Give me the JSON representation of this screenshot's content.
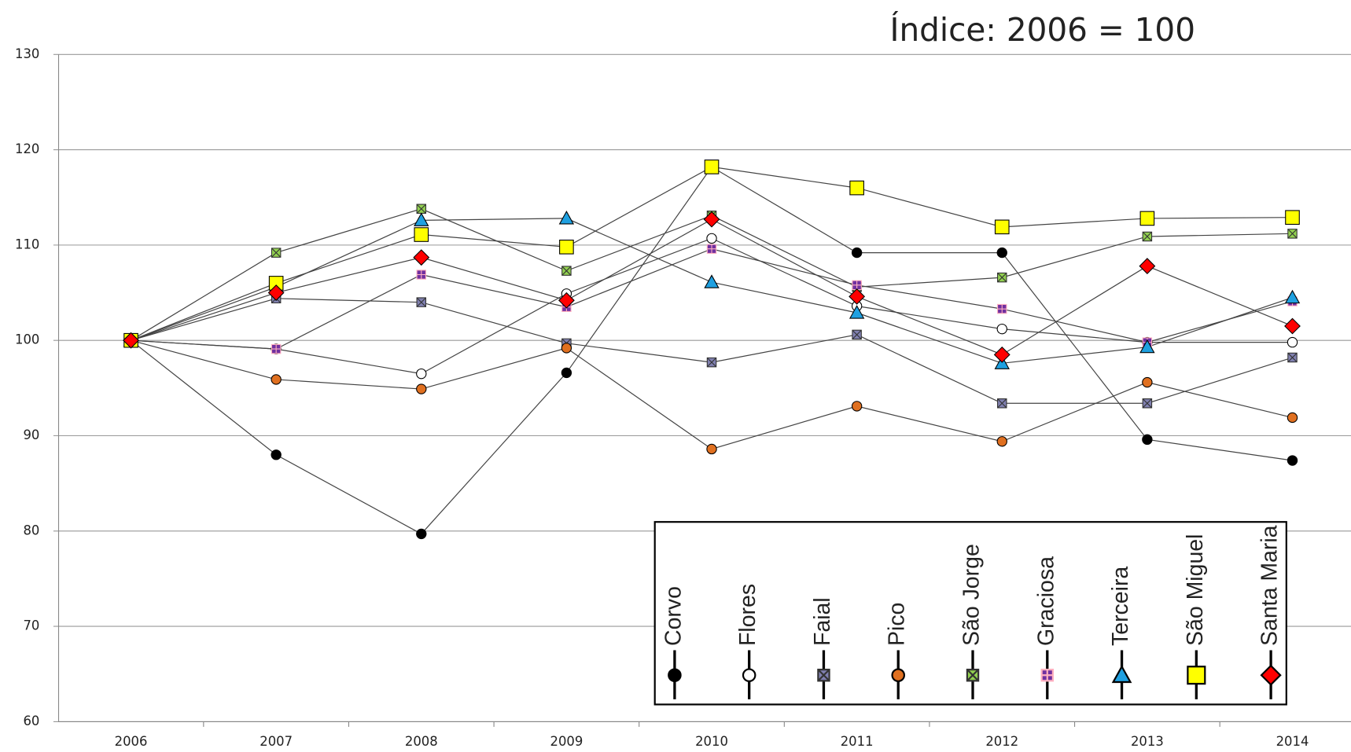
{
  "chart_data": {
    "type": "line",
    "annotation": "Índice: 2006 = 100",
    "categories": [
      "2006",
      "2007",
      "2008",
      "2009",
      "2010",
      "2011",
      "2012",
      "2013",
      "2014"
    ],
    "ylim": [
      60,
      130
    ],
    "yticks": [
      60,
      70,
      80,
      90,
      100,
      110,
      120,
      130
    ],
    "grid": true,
    "legend": "lower right",
    "series": [
      {
        "name": "Corvo",
        "color": "#000000",
        "marker": "circle",
        "values": [
          100,
          88,
          79.7,
          96.6,
          118.2,
          109.2,
          109.2,
          89.6,
          87.4
        ]
      },
      {
        "name": "Flores",
        "color": "#ffffff",
        "marker": "circle",
        "values": [
          100,
          99.1,
          96.5,
          104.9,
          110.7,
          103.6,
          101.2,
          99.8,
          99.8
        ]
      },
      {
        "name": "Faial",
        "color": "#8080b0",
        "marker": "xsquare",
        "values": [
          100,
          104.4,
          104,
          99.7,
          97.7,
          100.6,
          93.4,
          93.4,
          98.2
        ]
      },
      {
        "name": "Pico",
        "color": "#e07020",
        "marker": "circle",
        "values": [
          100,
          95.9,
          94.9,
          99.2,
          88.6,
          93.1,
          89.4,
          95.6,
          91.9
        ]
      },
      {
        "name": "São Jorge",
        "color": "#92d050",
        "marker": "xsquare",
        "values": [
          100,
          109.2,
          113.8,
          107.3,
          113.1,
          105.6,
          106.6,
          110.9,
          111.2
        ]
      },
      {
        "name": "Graciosa",
        "color": "#7030a0",
        "marker": "plussquare",
        "values": [
          100,
          99.1,
          106.9,
          103.5,
          109.6,
          105.8,
          103.3,
          99.8,
          104.1
        ]
      },
      {
        "name": "Terceira",
        "color": "#1fa0e0",
        "marker": "triangle",
        "values": [
          100,
          105.6,
          112.6,
          112.8,
          106.1,
          102.9,
          97.6,
          99.3,
          104.5
        ]
      },
      {
        "name": "São Miguel",
        "color": "#ffff00",
        "marker": "square",
        "values": [
          100,
          106,
          111.1,
          109.8,
          118.2,
          116,
          111.9,
          112.8,
          112.9
        ]
      },
      {
        "name": "Santa Maria",
        "color": "#ff0000",
        "marker": "diamond",
        "values": [
          100,
          105,
          108.7,
          104.2,
          112.7,
          104.6,
          98.5,
          107.8,
          101.5
        ]
      }
    ]
  }
}
